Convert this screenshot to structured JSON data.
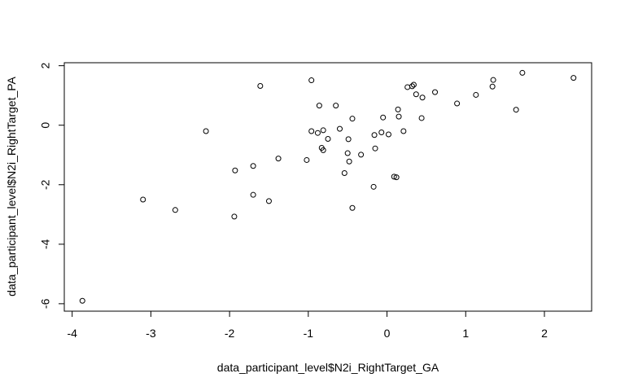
{
  "chart_data": {
    "type": "scatter",
    "title": "",
    "xlabel": "data_participant_level$N2i_RightTarget_GA",
    "ylabel": "data_participant_level$N2i_RightTarget_PA",
    "xlim": [
      -4.1,
      2.6
    ],
    "ylim": [
      -6.25,
      2.1
    ],
    "x_ticks": [
      -4,
      -3,
      -2,
      -1,
      0,
      1,
      2
    ],
    "x_tick_labels": [
      "-4",
      "-3",
      "-2",
      "-1",
      "0",
      "1",
      "2"
    ],
    "y_ticks": [
      -6,
      -4,
      -2,
      0,
      2
    ],
    "y_tick_labels": [
      "-6",
      "-4",
      "-2",
      "0",
      "2"
    ],
    "grid": false,
    "marker": "open-circle",
    "points": [
      {
        "x": -3.87,
        "y": -5.9
      },
      {
        "x": -3.1,
        "y": -2.5
      },
      {
        "x": -2.69,
        "y": -2.85
      },
      {
        "x": -2.3,
        "y": -0.2
      },
      {
        "x": -1.94,
        "y": -3.07
      },
      {
        "x": -1.93,
        "y": -1.52
      },
      {
        "x": -1.7,
        "y": -1.37
      },
      {
        "x": -1.7,
        "y": -2.34
      },
      {
        "x": -1.61,
        "y": 1.32
      },
      {
        "x": -1.5,
        "y": -2.55
      },
      {
        "x": -1.38,
        "y": -1.12
      },
      {
        "x": -1.02,
        "y": -1.17
      },
      {
        "x": -0.96,
        "y": 1.51
      },
      {
        "x": -0.96,
        "y": -0.2
      },
      {
        "x": -0.88,
        "y": -0.26
      },
      {
        "x": -0.86,
        "y": 0.66
      },
      {
        "x": -0.83,
        "y": -0.76
      },
      {
        "x": -0.81,
        "y": -0.84
      },
      {
        "x": -0.81,
        "y": -0.17
      },
      {
        "x": -0.75,
        "y": -0.46
      },
      {
        "x": -0.65,
        "y": 0.66
      },
      {
        "x": -0.6,
        "y": -0.12
      },
      {
        "x": -0.54,
        "y": -1.61
      },
      {
        "x": -0.5,
        "y": -0.94
      },
      {
        "x": -0.49,
        "y": -0.47
      },
      {
        "x": -0.48,
        "y": -1.22
      },
      {
        "x": -0.44,
        "y": 0.22
      },
      {
        "x": -0.44,
        "y": -2.78
      },
      {
        "x": -0.33,
        "y": -0.99
      },
      {
        "x": -0.17,
        "y": -2.07
      },
      {
        "x": -0.16,
        "y": -0.33
      },
      {
        "x": -0.15,
        "y": -0.78
      },
      {
        "x": -0.07,
        "y": -0.24
      },
      {
        "x": -0.05,
        "y": 0.26
      },
      {
        "x": 0.02,
        "y": -0.31
      },
      {
        "x": 0.09,
        "y": -1.73
      },
      {
        "x": 0.12,
        "y": -1.75
      },
      {
        "x": 0.14,
        "y": 0.53
      },
      {
        "x": 0.15,
        "y": 0.29
      },
      {
        "x": 0.21,
        "y": -0.2
      },
      {
        "x": 0.26,
        "y": 1.28
      },
      {
        "x": 0.32,
        "y": 1.31
      },
      {
        "x": 0.34,
        "y": 1.36
      },
      {
        "x": 0.37,
        "y": 1.04
      },
      {
        "x": 0.44,
        "y": 0.24
      },
      {
        "x": 0.45,
        "y": 0.93
      },
      {
        "x": 0.61,
        "y": 1.11
      },
      {
        "x": 0.89,
        "y": 0.73
      },
      {
        "x": 1.13,
        "y": 1.02
      },
      {
        "x": 1.34,
        "y": 1.3
      },
      {
        "x": 1.35,
        "y": 1.52
      },
      {
        "x": 1.64,
        "y": 0.52
      },
      {
        "x": 1.72,
        "y": 1.76
      },
      {
        "x": 2.37,
        "y": 1.59
      }
    ]
  }
}
